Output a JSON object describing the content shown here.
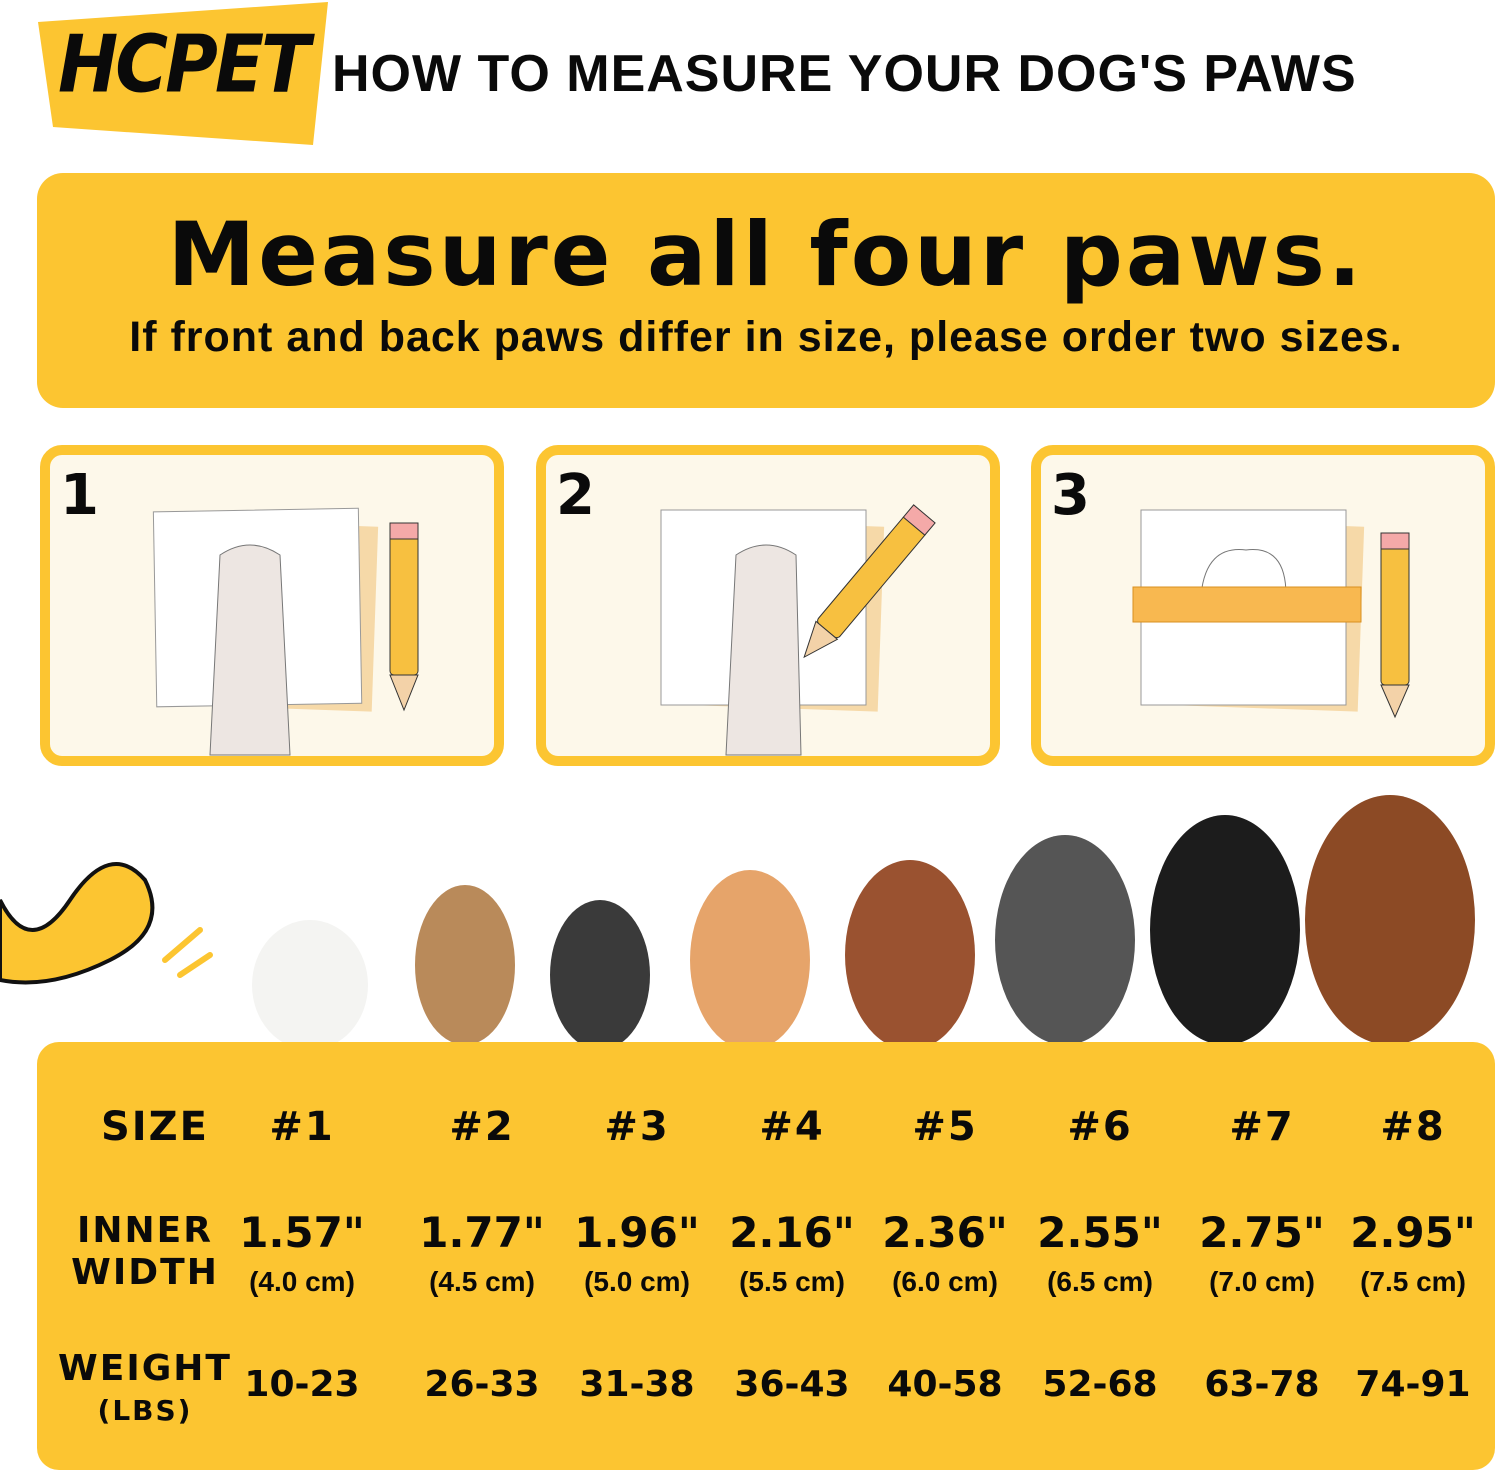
{
  "logo": {
    "text": "HCPET",
    "color": "#FCC531"
  },
  "title": "HOW TO MEASURE YOUR DOG'S PAWS",
  "banner": {
    "headline": "Measure all four paws.",
    "subline": "If front and back paws differ in size, please order two sizes."
  },
  "steps": [
    {
      "number": "1"
    },
    {
      "number": "2"
    },
    {
      "number": "3"
    }
  ],
  "accent_color": "#FCC531",
  "table": {
    "size_label": "SIZE",
    "width_label_1": "INNER",
    "width_label_2": "WIDTH",
    "weight_label": "WEIGHT",
    "weight_unit": "(LBS)",
    "columns": [
      {
        "size": "#1",
        "inch": "1.57\"",
        "cm": "(4.0 cm)",
        "weight": "10-23"
      },
      {
        "size": "#2",
        "inch": "1.77\"",
        "cm": "(4.5 cm)",
        "weight": "26-33"
      },
      {
        "size": "#3",
        "inch": "1.96\"",
        "cm": "(5.0 cm)",
        "weight": "31-38"
      },
      {
        "size": "#4",
        "inch": "2.16\"",
        "cm": "(5.5 cm)",
        "weight": "36-43"
      },
      {
        "size": "#5",
        "inch": "2.36\"",
        "cm": "(6.0 cm)",
        "weight": "40-58"
      },
      {
        "size": "#6",
        "inch": "2.55\"",
        "cm": "(6.5 cm)",
        "weight": "52-68"
      },
      {
        "size": "#7",
        "inch": "2.75\"",
        "cm": "(7.0 cm)",
        "weight": "63-78"
      },
      {
        "size": "#8",
        "inch": "2.95\"",
        "cm": "(7.5 cm)",
        "weight": "74-91"
      }
    ]
  }
}
